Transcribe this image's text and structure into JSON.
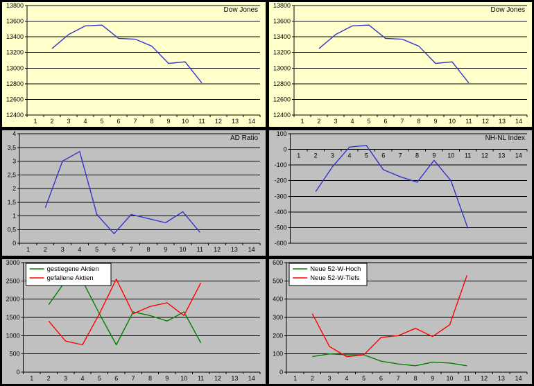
{
  "page": {
    "background": "#000000"
  },
  "x_categories": [
    "1",
    "2",
    "3",
    "4",
    "5",
    "6",
    "7",
    "8",
    "9",
    "10",
    "11",
    "12",
    "13",
    "14"
  ],
  "chart_data": [
    {
      "type": "line",
      "title": "Dow Jones",
      "background": "#FFFFCC",
      "ylim": [
        12400,
        13800
      ],
      "y_ticks": [
        12400,
        12600,
        12800,
        13000,
        13200,
        13400,
        13600,
        13800
      ],
      "y_tick_labels": [
        "12400",
        "12600",
        "12800",
        "13000",
        "13200",
        "13400",
        "13600",
        "13800"
      ],
      "grid": true,
      "legend": null,
      "series": [
        {
          "name": "Dow Jones",
          "color": "#3333CC",
          "x": [
            2,
            3,
            4,
            5,
            6,
            7,
            8,
            9,
            10,
            11
          ],
          "values": [
            13250,
            13430,
            13540,
            13550,
            13380,
            13370,
            13280,
            13060,
            13080,
            12810
          ]
        }
      ]
    },
    {
      "type": "line",
      "title": "Dow Jones",
      "background": "#FFFFCC",
      "ylim": [
        12400,
        13800
      ],
      "y_ticks": [
        12400,
        12600,
        12800,
        13000,
        13200,
        13400,
        13600,
        13800
      ],
      "y_tick_labels": [
        "12400",
        "12600",
        "12800",
        "13000",
        "13200",
        "13400",
        "13600",
        "13800"
      ],
      "grid": true,
      "legend": null,
      "series": [
        {
          "name": "Dow Jones",
          "color": "#3333CC",
          "x": [
            2,
            3,
            4,
            5,
            6,
            7,
            8,
            9,
            10,
            11
          ],
          "values": [
            13250,
            13430,
            13540,
            13550,
            13380,
            13370,
            13280,
            13060,
            13080,
            12810
          ]
        }
      ]
    },
    {
      "type": "line",
      "title": "AD Ratio",
      "background": "#C0C0C0",
      "ylim": [
        0,
        4
      ],
      "y_ticks": [
        0,
        0.5,
        1,
        1.5,
        2,
        2.5,
        3,
        3.5,
        4
      ],
      "y_tick_labels": [
        "0",
        "0,5",
        "1",
        "1,5",
        "2",
        "2,5",
        "3",
        "3,5",
        "4"
      ],
      "grid": true,
      "legend": null,
      "series": [
        {
          "name": "AD Ratio",
          "color": "#3333CC",
          "x": [
            2,
            3,
            4,
            5,
            6,
            7,
            8,
            9,
            10,
            11
          ],
          "values": [
            1.3,
            3.0,
            3.35,
            1.05,
            0.35,
            1.05,
            0.9,
            0.75,
            1.15,
            0.4
          ]
        }
      ]
    },
    {
      "type": "line",
      "title": "NH-NL Index",
      "background": "#C0C0C0",
      "ylim": [
        -600,
        100
      ],
      "y_ticks": [
        -600,
        -500,
        -400,
        -300,
        -200,
        -100,
        0,
        100
      ],
      "y_tick_labels": [
        "-600",
        "-500",
        "-400",
        "-300",
        "-200",
        "-100",
        "0",
        "100"
      ],
      "grid": true,
      "legend": null,
      "series": [
        {
          "name": "NH-NL Index",
          "color": "#3333CC",
          "x": [
            2,
            3,
            4,
            5,
            6,
            7,
            8,
            9,
            10,
            11
          ],
          "values": [
            -270,
            -110,
            15,
            25,
            -130,
            -175,
            -210,
            -70,
            -200,
            -505
          ]
        }
      ]
    },
    {
      "type": "line",
      "title": "",
      "background": "#C0C0C0",
      "ylim": [
        0,
        3000
      ],
      "y_ticks": [
        0,
        500,
        1000,
        1500,
        2000,
        2500,
        3000
      ],
      "y_tick_labels": [
        "0",
        "500",
        "1000",
        "1500",
        "2000",
        "2500",
        "3000"
      ],
      "grid": true,
      "legend": [
        {
          "label": "gestiegene Aktien",
          "color": "#008000"
        },
        {
          "label": "gefallene Aktien",
          "color": "#FF0000"
        }
      ],
      "series": [
        {
          "name": "gestiegene Aktien",
          "color": "#008000",
          "x": [
            2,
            3,
            4,
            5,
            6,
            7,
            8,
            9,
            10,
            11
          ],
          "values": [
            1850,
            2500,
            2500,
            1600,
            750,
            1650,
            1550,
            1400,
            1650,
            800
          ]
        },
        {
          "name": "gefallene Aktien",
          "color": "#FF0000",
          "x": [
            2,
            3,
            4,
            5,
            6,
            7,
            8,
            9,
            10,
            11
          ],
          "values": [
            1400,
            850,
            750,
            1600,
            2550,
            1600,
            1800,
            1900,
            1550,
            2450
          ]
        }
      ]
    },
    {
      "type": "line",
      "title": "",
      "background": "#C0C0C0",
      "ylim": [
        0,
        600
      ],
      "y_ticks": [
        0,
        100,
        200,
        300,
        400,
        500,
        600
      ],
      "y_tick_labels": [
        "0",
        "100",
        "200",
        "300",
        "400",
        "500",
        "600"
      ],
      "grid": true,
      "legend": [
        {
          "label": "Neue 52-W-Hoch",
          "color": "#008000"
        },
        {
          "label": "Neue 52-W-Tiefs",
          "color": "#FF0000"
        }
      ],
      "series": [
        {
          "name": "Neue 52-W-Hoch",
          "color": "#008000",
          "x": [
            2,
            3,
            4,
            5,
            6,
            7,
            8,
            9,
            10,
            11
          ],
          "values": [
            85,
            100,
            95,
            95,
            60,
            45,
            35,
            55,
            50,
            35
          ]
        },
        {
          "name": "Neue 52-W-Tiefs",
          "color": "#FF0000",
          "x": [
            2,
            3,
            4,
            5,
            6,
            7,
            8,
            9,
            10,
            11
          ],
          "values": [
            320,
            140,
            85,
            95,
            190,
            200,
            240,
            195,
            260,
            530
          ]
        }
      ]
    }
  ]
}
